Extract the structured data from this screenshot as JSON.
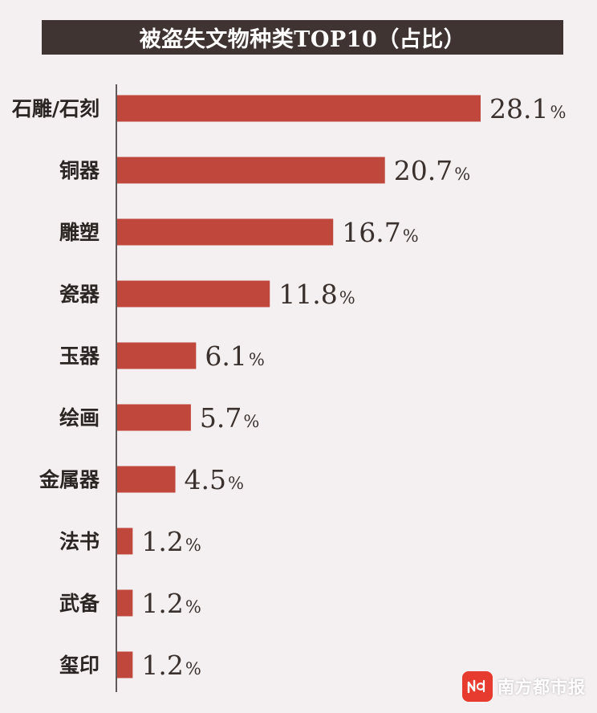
{
  "chart_data": {
    "type": "bar",
    "orientation": "horizontal",
    "title": "被盗失文物种类TOP10（占比）",
    "categories": [
      "石雕/石刻",
      "铜器",
      "雕塑",
      "瓷器",
      "玉器",
      "绘画",
      "金属器",
      "法书",
      "武备",
      "玺印"
    ],
    "values": [
      28.1,
      20.7,
      16.7,
      11.8,
      6.1,
      5.7,
      4.5,
      1.2,
      1.2,
      1.2
    ],
    "value_labels": [
      "28.1",
      "20.7",
      "16.7",
      "11.8",
      "6.1",
      "5.7",
      "4.5",
      "1.2",
      "1.2",
      "1.2"
    ],
    "value_suffix": "%",
    "xlim": [
      0,
      28.1
    ],
    "grid": false,
    "bar_color": "#c0473c"
  },
  "watermark": {
    "logo_text": "N",
    "text": "南方都市报",
    "logo_color": "#e63b2e"
  }
}
